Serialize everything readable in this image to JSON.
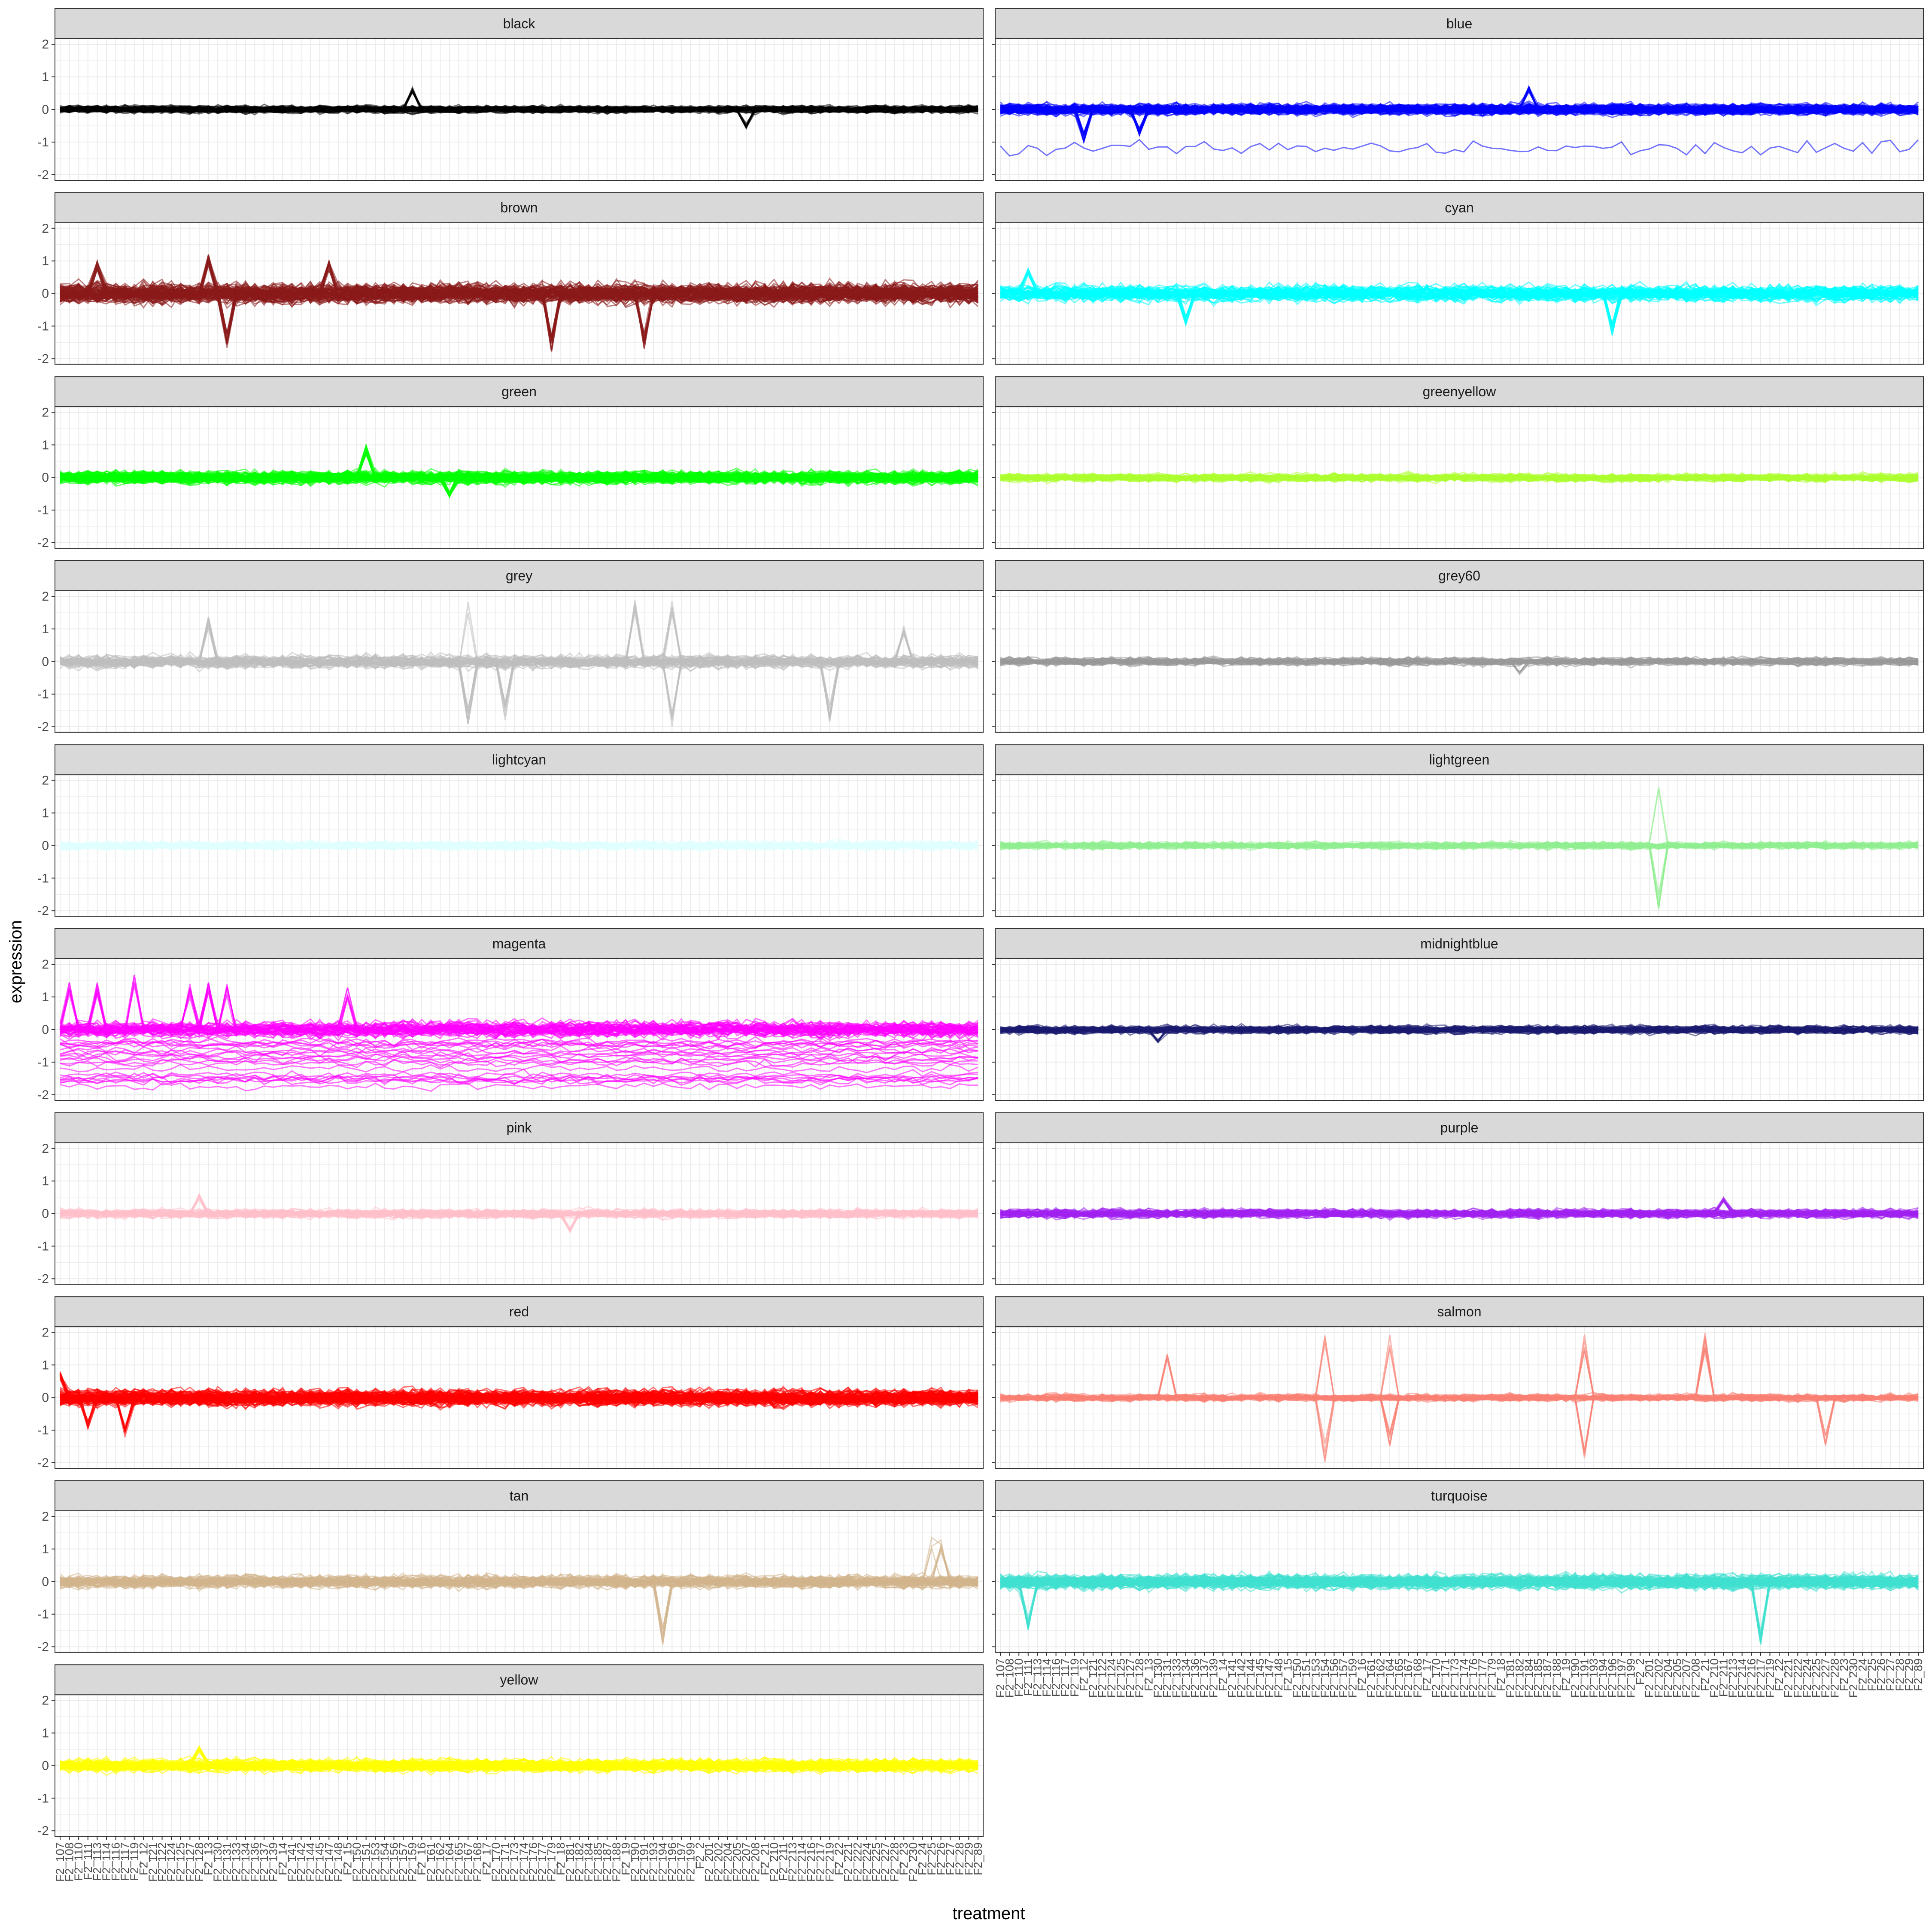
{
  "chart_data": {
    "type": "line",
    "xlabel": "treatment",
    "ylabel": "expression",
    "ylim": [
      -2,
      2
    ],
    "yticks": [
      "-2",
      "-1",
      "0",
      "1",
      "2"
    ],
    "x_categories_count": 100,
    "x_tick_labels": [
      "F2_107",
      "F2_108",
      "F2_110",
      "F2_111",
      "F2_113",
      "F2_114",
      "F2_116",
      "F2_117",
      "F2_119",
      "F2_12",
      "F2_121",
      "F2_122",
      "F2_124",
      "F2_125",
      "F2_127",
      "F2_128",
      "F2_13",
      "F2_130",
      "F2_131",
      "F2_133",
      "F2_134",
      "F2_136",
      "F2_137",
      "F2_139",
      "F2_14",
      "F2_141",
      "F2_142",
      "F2_144",
      "F2_145",
      "F2_147",
      "F2_148",
      "F2_15",
      "F2_150",
      "F2_151",
      "F2_153",
      "F2_154",
      "F2_156",
      "F2_157",
      "F2_159",
      "F2_16",
      "F2_161",
      "F2_162",
      "F2_164",
      "F2_165",
      "F2_167",
      "F2_168",
      "F2_17",
      "F2_170",
      "F2_171",
      "F2_173",
      "F2_174",
      "F2_176",
      "F2_177",
      "F2_179",
      "F2_18",
      "F2_181",
      "F2_182",
      "F2_184",
      "F2_185",
      "F2_187",
      "F2_188",
      "F2_19",
      "F2_190",
      "F2_191",
      "F2_193",
      "F2_194",
      "F2_196",
      "F2_197",
      "F2_199",
      "F2_2",
      "F2_201",
      "F2_202",
      "F2_204",
      "F2_205",
      "F2_207",
      "F2_208",
      "F2_21",
      "F2_210",
      "F2_211",
      "F2_213",
      "F2_214",
      "F2_216",
      "F2_217",
      "F2_219",
      "F2_22",
      "F2_221",
      "F2_222",
      "F2_224",
      "F2_225",
      "F2_227",
      "F2_228",
      "F2_23",
      "F2_230",
      "F2_24",
      "F2_25",
      "F2_26",
      "F2_27",
      "F2_28",
      "F2_29",
      "F2_89"
    ],
    "grid": "on",
    "facets": [
      {
        "name": "black",
        "color": "#000000",
        "n_lines": 60,
        "spread": 0.08,
        "spikes": [
          {
            "i": 38,
            "v": 0.7
          },
          {
            "i": 74,
            "v": -0.6
          }
        ],
        "outlier": null
      },
      {
        "name": "blue",
        "color": "#0000FF",
        "n_lines": 80,
        "spread": 0.12,
        "spikes": [
          {
            "i": 57,
            "v": 0.75
          },
          {
            "i": 9,
            "v": -1.0
          },
          {
            "i": 15,
            "v": -0.8
          }
        ],
        "outlier": -1.2
      },
      {
        "name": "brown",
        "color": "#8B1A1A",
        "n_lines": 90,
        "spread": 0.22,
        "spikes": [
          {
            "i": 4,
            "v": 1.0
          },
          {
            "i": 16,
            "v": 1.2
          },
          {
            "i": 29,
            "v": 1.0
          },
          {
            "i": 18,
            "v": -1.7
          },
          {
            "i": 53,
            "v": -1.8
          },
          {
            "i": 63,
            "v": -1.7
          }
        ],
        "outlier": null
      },
      {
        "name": "cyan",
        "color": "#00FFFF",
        "n_lines": 60,
        "spread": 0.18,
        "spikes": [
          {
            "i": 3,
            "v": 0.8
          },
          {
            "i": 66,
            "v": -1.3
          },
          {
            "i": 20,
            "v": -1.0
          }
        ],
        "outlier": null
      },
      {
        "name": "green",
        "color": "#00FF00",
        "n_lines": 80,
        "spread": 0.14,
        "spikes": [
          {
            "i": 33,
            "v": 1.0
          },
          {
            "i": 42,
            "v": -0.6
          }
        ],
        "outlier": null
      },
      {
        "name": "greenyellow",
        "color": "#ADFF2F",
        "n_lines": 50,
        "spread": 0.09,
        "spikes": [],
        "outlier": null
      },
      {
        "name": "grey",
        "color": "#BEBEBE",
        "n_lines": 50,
        "spread": 0.15,
        "spikes": [
          {
            "i": 16,
            "v": 1.4
          },
          {
            "i": 44,
            "v": 2.0
          },
          {
            "i": 62,
            "v": 1.9
          },
          {
            "i": 66,
            "v": 2.0
          },
          {
            "i": 44,
            "v": -2.0
          },
          {
            "i": 48,
            "v": -1.8
          },
          {
            "i": 66,
            "v": -2.0
          },
          {
            "i": 83,
            "v": -1.9
          },
          {
            "i": 91,
            "v": 1.1
          }
        ],
        "outlier": null
      },
      {
        "name": "grey60",
        "color": "#999999",
        "n_lines": 40,
        "spread": 0.09,
        "spikes": [
          {
            "i": 56,
            "v": -0.4
          }
        ],
        "outlier": null
      },
      {
        "name": "lightcyan",
        "color": "#E0FFFF",
        "n_lines": 40,
        "spread": 0.1,
        "spikes": [],
        "outlier": null
      },
      {
        "name": "lightgreen",
        "color": "#90EE90",
        "n_lines": 40,
        "spread": 0.08,
        "spikes": [
          {
            "i": 71,
            "v": 2.0
          },
          {
            "i": 71,
            "v": -2.0
          }
        ],
        "outlier": null
      },
      {
        "name": "magenta",
        "color": "#FF00FF",
        "n_lines": 70,
        "spread": 0.18,
        "spikes": [
          {
            "i": 1,
            "v": 1.5
          },
          {
            "i": 4,
            "v": 1.5
          },
          {
            "i": 8,
            "v": 1.8
          },
          {
            "i": 14,
            "v": 1.4
          },
          {
            "i": 16,
            "v": 1.5
          },
          {
            "i": 18,
            "v": 1.4
          },
          {
            "i": 31,
            "v": 1.3
          }
        ],
        "outlier": -1.0
      },
      {
        "name": "midnightblue",
        "color": "#191970",
        "n_lines": 50,
        "spread": 0.09,
        "spikes": [
          {
            "i": 17,
            "v": -0.4
          }
        ],
        "outlier": null
      },
      {
        "name": "pink",
        "color": "#FFC0CB",
        "n_lines": 50,
        "spread": 0.1,
        "spikes": [
          {
            "i": 15,
            "v": 0.6
          },
          {
            "i": 55,
            "v": -0.6
          }
        ],
        "outlier": null
      },
      {
        "name": "purple",
        "color": "#A020F0",
        "n_lines": 50,
        "spread": 0.1,
        "spikes": [
          {
            "i": 78,
            "v": 0.5
          }
        ],
        "outlier": null
      },
      {
        "name": "red",
        "color": "#FF0000",
        "n_lines": 80,
        "spread": 0.18,
        "spikes": [
          {
            "i": 0,
            "v": 0.8
          },
          {
            "i": 3,
            "v": -1.0
          },
          {
            "i": 7,
            "v": -1.2
          }
        ],
        "outlier": null
      },
      {
        "name": "salmon",
        "color": "#FA8072",
        "n_lines": 40,
        "spread": 0.08,
        "spikes": [
          {
            "i": 18,
            "v": 1.4
          },
          {
            "i": 35,
            "v": 2.0
          },
          {
            "i": 35,
            "v": -2.0
          },
          {
            "i": 42,
            "v": 2.0
          },
          {
            "i": 42,
            "v": -1.5
          },
          {
            "i": 63,
            "v": 2.0
          },
          {
            "i": 63,
            "v": -2.0
          },
          {
            "i": 76,
            "v": 2.0
          },
          {
            "i": 89,
            "v": -1.5
          }
        ],
        "outlier": null
      },
      {
        "name": "tan",
        "color": "#D2B48C",
        "n_lines": 60,
        "spread": 0.14,
        "spikes": [
          {
            "i": 65,
            "v": -2.0
          },
          {
            "i": 94,
            "v": 1.4
          },
          {
            "i": 95,
            "v": 1.3
          }
        ],
        "outlier": null
      },
      {
        "name": "turquoise",
        "color": "#40E0D0",
        "n_lines": 80,
        "spread": 0.16,
        "spikes": [
          {
            "i": 3,
            "v": -1.5
          },
          {
            "i": 82,
            "v": -2.0
          }
        ],
        "outlier": null
      },
      {
        "name": "yellow",
        "color": "#FFFF00",
        "n_lines": 70,
        "spread": 0.14,
        "spikes": [
          {
            "i": 15,
            "v": 0.6
          }
        ],
        "outlier": null
      }
    ]
  }
}
